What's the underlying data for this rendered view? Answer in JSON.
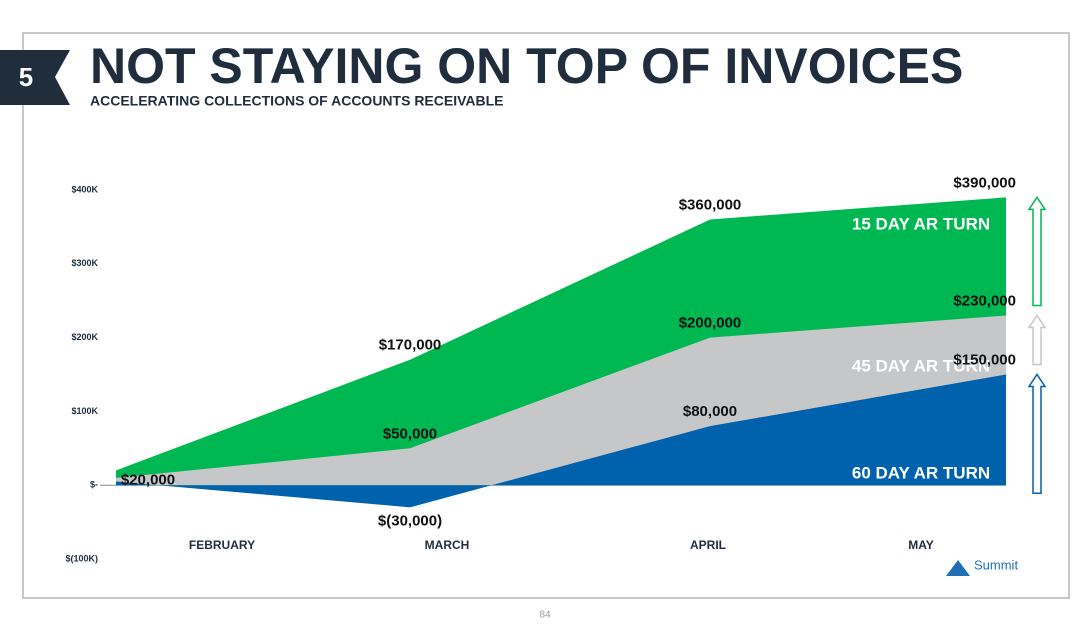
{
  "slide_number": "5",
  "page_number": "84",
  "logo": "Summit",
  "chart_data": {
    "type": "area",
    "title": "NOT STAYING ON TOP OF INVOICES",
    "subtitle": "ACCELERATING COLLECTIONS OF ACCOUNTS RECEIVABLE",
    "categories": [
      "FEBRUARY",
      "MARCH",
      "APRIL",
      "MAY"
    ],
    "series": [
      {
        "name": "15 DAY AR TURN",
        "color": "#00b852",
        "values": [
          20000,
          170000,
          360000,
          390000
        ],
        "value_labels": [
          "$20,000",
          "$170,000",
          "$360,000",
          "$390,000"
        ]
      },
      {
        "name": "45 DAY AR TURN",
        "color": "#c6c7c9",
        "values": [
          10000,
          50000,
          200000,
          230000
        ],
        "value_labels": [
          null,
          "$50,000",
          "$200,000",
          "$230,000"
        ]
      },
      {
        "name": "60 DAY AR TURN",
        "color": "#0061ad",
        "values": [
          5000,
          -30000,
          80000,
          150000
        ],
        "value_labels": [
          null,
          "$(30,000)",
          "$80,000",
          "$150,000"
        ]
      }
    ],
    "ylim": [
      -100000,
      400000
    ],
    "yticks": [
      {
        "value": -100000,
        "label": "$(100K)"
      },
      {
        "value": 0,
        "label": "$-"
      },
      {
        "value": 100000,
        "label": "$100K"
      },
      {
        "value": 200000,
        "label": "$200K"
      },
      {
        "value": 300000,
        "label": "$300K"
      },
      {
        "value": 400000,
        "label": "$400K"
      }
    ]
  }
}
